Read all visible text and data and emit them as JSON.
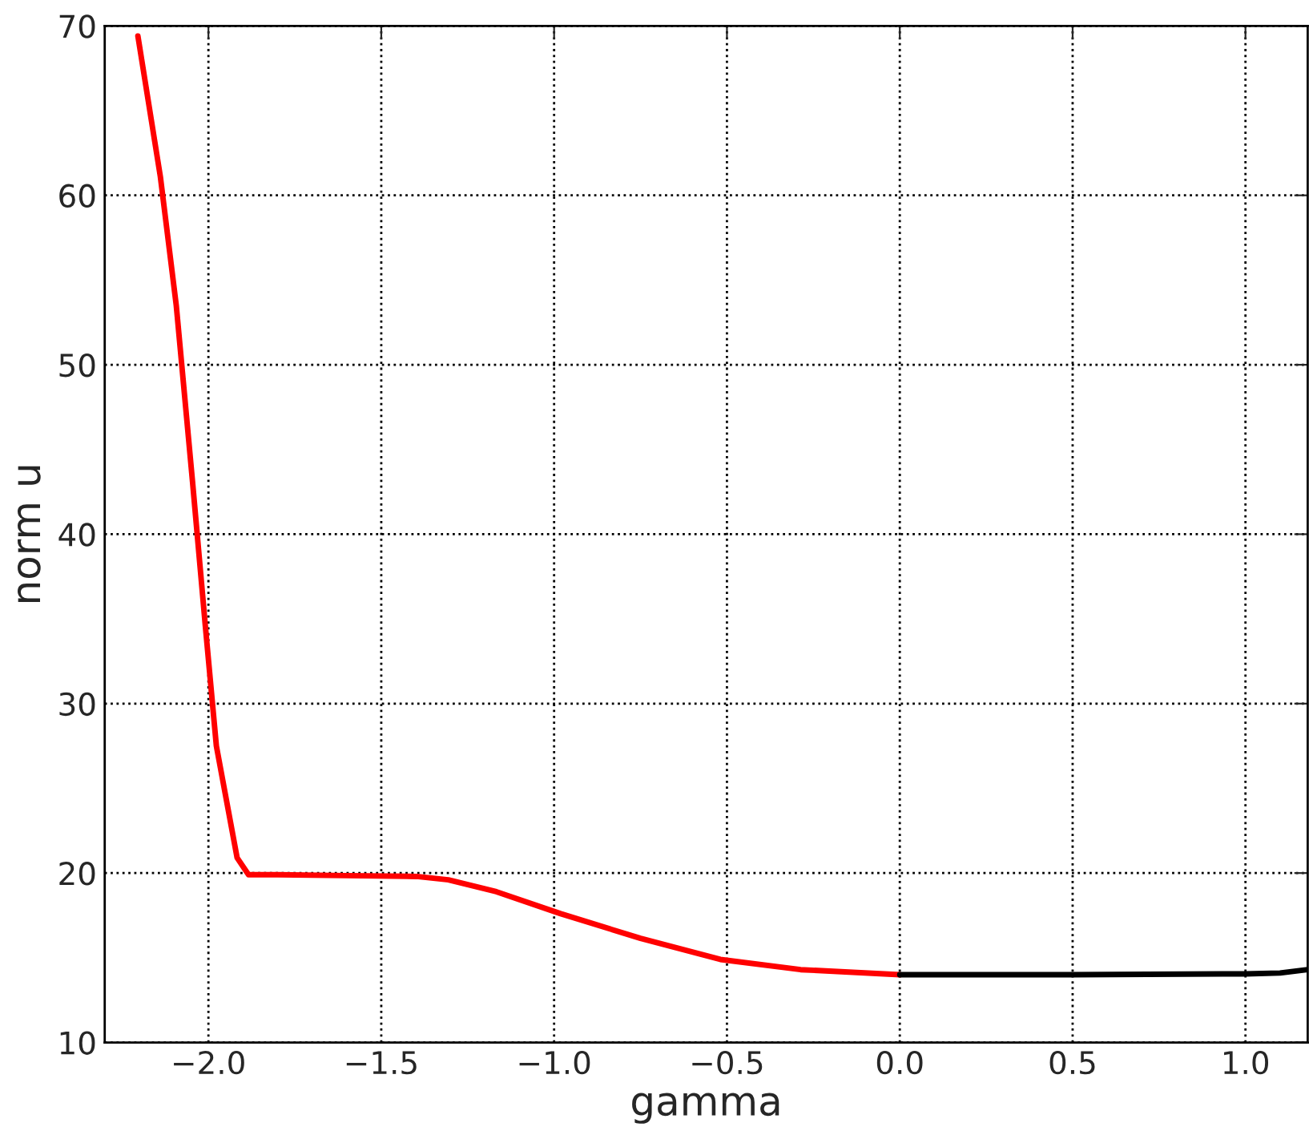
{
  "chart_data": {
    "type": "line",
    "xlabel": "gamma",
    "ylabel": "norm u",
    "xlim": [
      -2.3,
      1.18
    ],
    "ylim": [
      10,
      70
    ],
    "xticks": [
      {
        "value": -2.0,
        "label": "−2.0"
      },
      {
        "value": -1.5,
        "label": "−1.5"
      },
      {
        "value": -1.0,
        "label": "−1.0"
      },
      {
        "value": -0.5,
        "label": "−0.5"
      },
      {
        "value": 0.0,
        "label": "0.0"
      },
      {
        "value": 0.5,
        "label": "0.5"
      },
      {
        "value": 1.0,
        "label": "1.0"
      }
    ],
    "yticks": [
      10,
      20,
      30,
      40,
      50,
      60,
      70
    ],
    "grid": true,
    "line_style": "solid",
    "series": [
      {
        "color": "#ff0000",
        "x": [
          -2.204,
          -2.139,
          -2.093,
          -2.046,
          -2.009,
          -1.977,
          -1.917,
          -1.884,
          -1.8,
          -1.6,
          -1.398,
          -1.306,
          -1.167,
          -0.981,
          -0.75,
          -0.519,
          -0.287,
          0.0
        ],
        "values": [
          69.4,
          61.1,
          53.5,
          43.1,
          34.6,
          27.5,
          20.9,
          19.9,
          19.9,
          19.85,
          19.8,
          19.6,
          18.9,
          17.6,
          16.15,
          14.9,
          14.3,
          14.0
        ]
      },
      {
        "color": "#000000",
        "x": [
          0.0,
          0.5,
          1.0,
          1.1,
          1.18
        ],
        "values": [
          14.0,
          14.0,
          14.05,
          14.1,
          14.3
        ]
      }
    ]
  }
}
